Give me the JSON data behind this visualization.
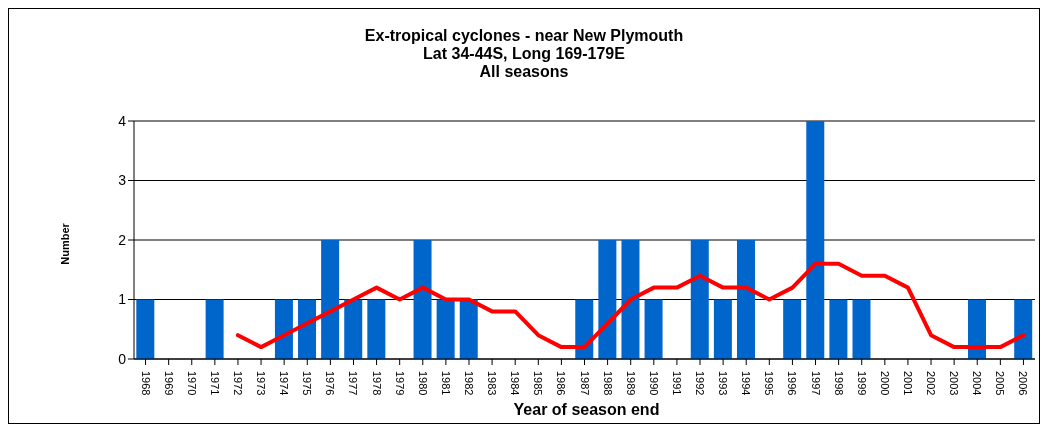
{
  "chart_data": {
    "type": "bar",
    "title": "Ex-tropical cyclones - near New Plymouth\nLat 34-44S, Long 169-179E\nAll seasons",
    "xlabel": "Year of season end",
    "ylabel": "Number",
    "categories": [
      "1968",
      "1969",
      "1970",
      "1971",
      "1972",
      "1973",
      "1974",
      "1975",
      "1976",
      "1977",
      "1978",
      "1979",
      "1980",
      "1981",
      "1982",
      "1983",
      "1984",
      "1985",
      "1986",
      "1987",
      "1988",
      "1989",
      "1990",
      "1991",
      "1992",
      "1993",
      "1994",
      "1995",
      "1996",
      "1997",
      "1998",
      "1999",
      "2000",
      "2001",
      "2002",
      "2003",
      "2004",
      "2005",
      "2006"
    ],
    "series": [
      {
        "color": "#0066cc",
        "values": [
          1,
          0,
          0,
          1,
          0,
          0,
          1,
          1,
          2,
          1,
          1,
          0,
          2,
          1,
          1,
          0,
          0,
          0,
          0,
          1,
          2,
          2,
          1,
          0,
          2,
          1,
          2,
          0,
          1,
          4,
          1,
          1,
          0,
          0,
          0,
          0,
          1,
          0,
          1
        ]
      },
      {
        "type": "line",
        "color": "#ff0000",
        "values": [
          null,
          null,
          null,
          null,
          0.4,
          0.2,
          0.4,
          0.6,
          0.8,
          1.0,
          1.2,
          1.0,
          1.2,
          1.0,
          1.0,
          0.8,
          0.8,
          0.4,
          0.2,
          0.2,
          0.6,
          1.0,
          1.2,
          1.2,
          1.4,
          1.2,
          1.2,
          1.0,
          1.2,
          1.6,
          1.6,
          1.4,
          1.4,
          1.2,
          0.4,
          0.2,
          0.2,
          0.2,
          0.4
        ]
      }
    ],
    "ylim": [
      0,
      4
    ],
    "yticks": [
      0,
      1,
      2,
      3,
      4
    ],
    "grid": "y",
    "legend": false,
    "marker": "none",
    "line_style": "solid"
  }
}
